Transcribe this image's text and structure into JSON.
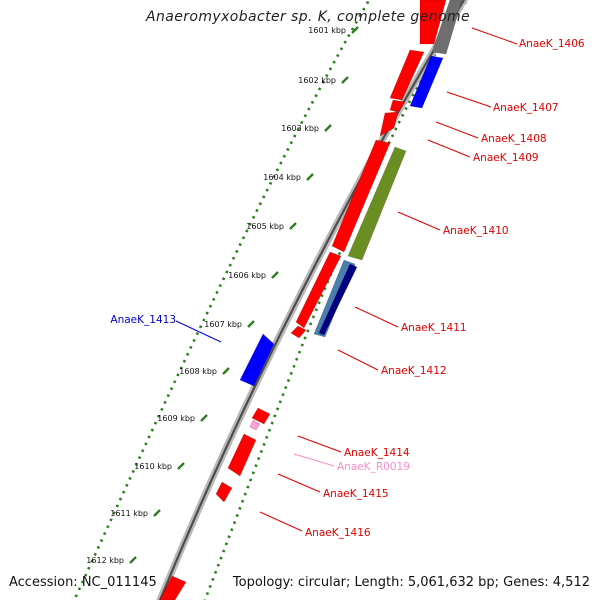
{
  "title": "Anaeromyxobacter sp. K, complete genome",
  "accession": "Accession: NC_011145",
  "topology": "Topology: circular; Length: 5,061,632 bp; Genes: 4,512",
  "colors": {
    "backbone": "#8a8a8a",
    "tick": "#2e7d1f",
    "red": "#ff0000",
    "blue": "#0000ff",
    "gray": "#6e6e6e",
    "olive": "#6b8e23",
    "navy": "#000080",
    "steel": "#4a7fb0",
    "pink": "#ff9ed4",
    "label_red": "#e00000",
    "label_blue": "#0000cc",
    "label_pink": "#ff8cc8"
  },
  "ticks": [
    "1601 kbp",
    "1602 kbp",
    "1603 kbp",
    "1604 kbp",
    "1605 kbp",
    "1606 kbp",
    "1607 kbp",
    "1608 kbp",
    "1609 kbp",
    "1610 kbp",
    "1611 kbp",
    "1612 kbp"
  ],
  "gene_labels": [
    {
      "text": "AnaeK_1406",
      "color": "red"
    },
    {
      "text": "AnaeK_1407",
      "color": "red"
    },
    {
      "text": "AnaeK_1408",
      "color": "red"
    },
    {
      "text": "AnaeK_1409",
      "color": "red"
    },
    {
      "text": "AnaeK_1410",
      "color": "red"
    },
    {
      "text": "AnaeK_1411",
      "color": "red"
    },
    {
      "text": "AnaeK_1412",
      "color": "red"
    },
    {
      "text": "AnaeK_1413",
      "color": "blue"
    },
    {
      "text": "AnaeK_1414",
      "color": "red"
    },
    {
      "text": "AnaeK_R0019",
      "color": "pink"
    },
    {
      "text": "AnaeK_1415",
      "color": "red"
    },
    {
      "text": "AnaeK_1416",
      "color": "red"
    }
  ]
}
